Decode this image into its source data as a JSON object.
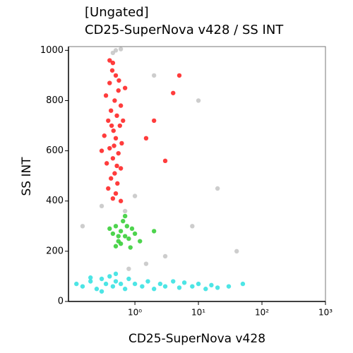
{
  "chart_data": {
    "type": "scatter",
    "title": "[Ungated]",
    "subtitle": "CD25-SuperNova v428 / SS INT",
    "x_label": "CD25-SuperNova v428",
    "y_label": "SS INT",
    "x_scale": "log",
    "xlim": [
      0.09,
      1000
    ],
    "ylim": [
      0,
      1015
    ],
    "xticks": [
      {
        "value": 1,
        "label": "10⁰"
      },
      {
        "value": 10,
        "label": "10¹"
      },
      {
        "value": 100,
        "label": "10²"
      },
      {
        "value": 1000,
        "label": "10³"
      }
    ],
    "yticks": [
      0,
      200,
      400,
      600,
      800,
      1000
    ],
    "series": [
      {
        "color": "#c4c4c4",
        "x": [
          0.5,
          0.45,
          0.6,
          0.3,
          0.7,
          1.5,
          3,
          8,
          20,
          2,
          0.15,
          10,
          0.8,
          40,
          1
        ],
        "values": [
          1000,
          990,
          1005,
          380,
          360,
          150,
          180,
          300,
          450,
          900,
          300,
          800,
          130,
          200,
          420
        ]
      },
      {
        "color": "#ff1a1a",
        "x": [
          0.45,
          0.5,
          0.4,
          0.55,
          0.35,
          0.48,
          0.6,
          0.42,
          0.52,
          0.38,
          0.58,
          0.46,
          0.33,
          0.5,
          0.62,
          0.4,
          0.55,
          0.45,
          0.36,
          0.6,
          0.48,
          0.42,
          0.53,
          0.38,
          0.5,
          0.45,
          0.6,
          0.4,
          0.65,
          0.3,
          0.7,
          0.44,
          0.56,
          0.47,
          0.52,
          0.43,
          3,
          2,
          5,
          4,
          1.5
        ],
        "values": [
          950,
          900,
          870,
          840,
          820,
          800,
          780,
          760,
          740,
          720,
          700,
          680,
          660,
          650,
          630,
          610,
          590,
          570,
          550,
          530,
          510,
          490,
          470,
          450,
          430,
          410,
          400,
          960,
          720,
          600,
          850,
          920,
          880,
          620,
          540,
          700,
          560,
          720,
          900,
          830,
          650
        ]
      },
      {
        "color": "#2ecc2e",
        "x": [
          0.5,
          0.6,
          0.7,
          0.55,
          0.45,
          0.65,
          0.8,
          0.9,
          0.5,
          0.75,
          1.0,
          0.6,
          0.4,
          0.7,
          1.2,
          0.85,
          2,
          0.55
        ],
        "values": [
          300,
          280,
          260,
          240,
          270,
          320,
          250,
          290,
          220,
          300,
          270,
          230,
          290,
          340,
          240,
          215,
          280,
          260
        ]
      },
      {
        "color": "#2ee0e0",
        "x": [
          0.12,
          0.15,
          0.2,
          0.25,
          0.3,
          0.35,
          0.4,
          0.45,
          0.5,
          0.6,
          0.7,
          0.8,
          1,
          1.3,
          1.6,
          2,
          2.5,
          3,
          4,
          5,
          6,
          8,
          10,
          13,
          16,
          20,
          30,
          0.3,
          0.5,
          0.2,
          50
        ],
        "values": [
          70,
          60,
          80,
          50,
          90,
          70,
          100,
          60,
          80,
          70,
          50,
          90,
          70,
          60,
          80,
          50,
          70,
          60,
          80,
          55,
          75,
          60,
          70,
          50,
          65,
          55,
          60,
          40,
          110,
          95,
          70
        ]
      }
    ]
  }
}
